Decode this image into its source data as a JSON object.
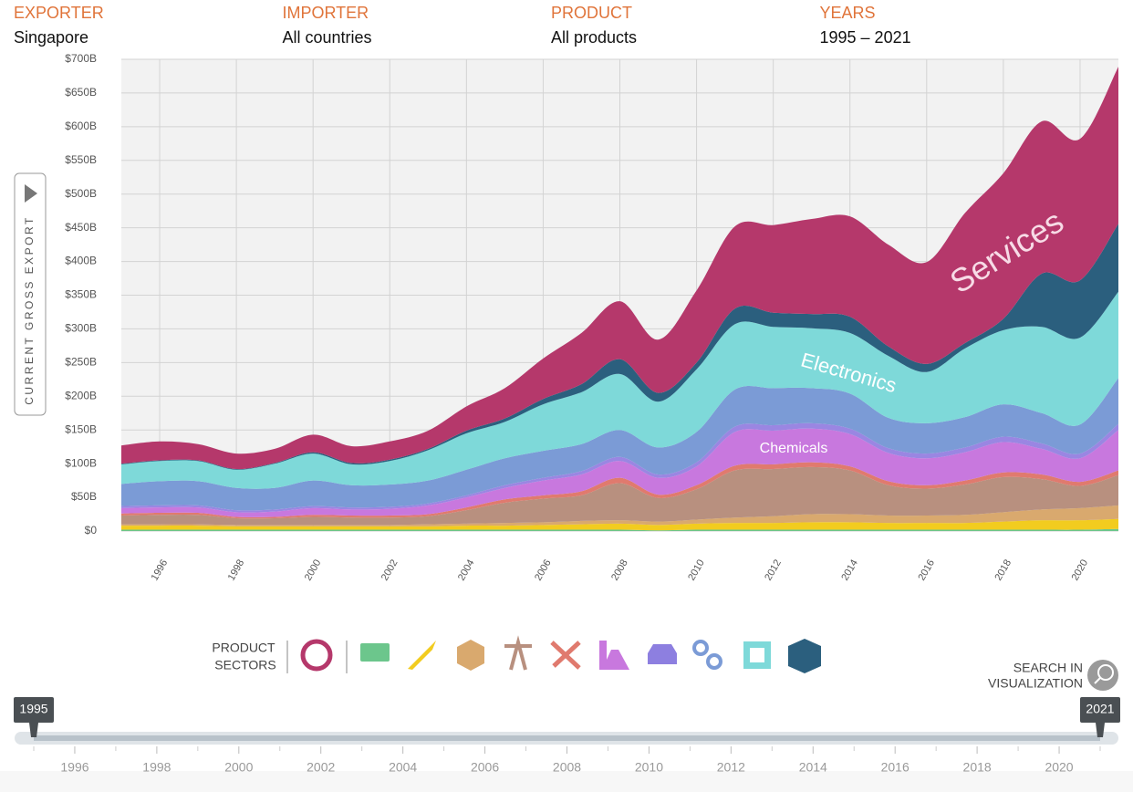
{
  "header": {
    "filters": [
      {
        "label": "EXPORTER",
        "value": "Singapore"
      },
      {
        "label": "IMPORTER",
        "value": "All countries"
      },
      {
        "label": "PRODUCT",
        "value": "All products"
      },
      {
        "label": "YEARS",
        "value": "1995 – 2021"
      }
    ]
  },
  "chart_data": {
    "type": "stacked-area",
    "y_label": "CURRENT GROSS EXPORT",
    "x": [
      1995,
      1996,
      1997,
      1998,
      1999,
      2000,
      2001,
      2002,
      2003,
      2004,
      2005,
      2006,
      2007,
      2008,
      2009,
      2010,
      2011,
      2012,
      2013,
      2014,
      2015,
      2016,
      2017,
      2018,
      2019,
      2020,
      2021
    ],
    "xlim": [
      1995,
      2021
    ],
    "xticks": [
      1996,
      1998,
      2000,
      2002,
      2004,
      2006,
      2008,
      2010,
      2012,
      2014,
      2016,
      2018,
      2020
    ],
    "ylim": [
      0,
      700
    ],
    "yticks": [
      {
        "value": 0,
        "label": "$0"
      },
      {
        "value": 50,
        "label": "$50B"
      },
      {
        "value": 100,
        "label": "$100B"
      },
      {
        "value": 150,
        "label": "$150B"
      },
      {
        "value": 200,
        "label": "$200B"
      },
      {
        "value": 250,
        "label": "$250B"
      },
      {
        "value": 300,
        "label": "$300B"
      },
      {
        "value": 350,
        "label": "$350B"
      },
      {
        "value": 400,
        "label": "$400B"
      },
      {
        "value": 450,
        "label": "$450B"
      },
      {
        "value": 500,
        "label": "$500B"
      },
      {
        "value": 550,
        "label": "$550B"
      },
      {
        "value": 600,
        "label": "$600B"
      },
      {
        "value": 650,
        "label": "$650B"
      },
      {
        "value": 700,
        "label": "$700B"
      }
    ],
    "grid": true,
    "series": [
      {
        "color": "#6cc68c",
        "values": [
          2,
          2,
          2,
          2,
          2,
          2,
          2,
          2,
          2,
          2,
          2,
          2,
          2,
          2,
          1,
          2,
          2,
          2,
          2,
          2,
          2,
          2,
          2,
          2,
          2,
          2,
          3
        ]
      },
      {
        "color": "#f2cc1f",
        "values": [
          6,
          6,
          6,
          5,
          5,
          5,
          5,
          5,
          5,
          6,
          6,
          7,
          8,
          9,
          8,
          9,
          10,
          10,
          11,
          11,
          10,
          10,
          10,
          12,
          14,
          14,
          15
        ]
      },
      {
        "color": "#d9a96e",
        "values": [
          2,
          2,
          2,
          2,
          2,
          2,
          2,
          2,
          3,
          3,
          4,
          4,
          5,
          5,
          5,
          6,
          8,
          10,
          12,
          12,
          11,
          11,
          12,
          14,
          16,
          18,
          20
        ]
      },
      {
        "color": "#b8907f",
        "values": [
          13,
          14,
          14,
          10,
          10,
          12,
          11,
          11,
          12,
          20,
          30,
          35,
          38,
          55,
          35,
          45,
          70,
          70,
          70,
          65,
          45,
          40,
          45,
          52,
          45,
          33,
          45
        ]
      },
      {
        "color": "#e07a6e",
        "values": [
          3,
          3,
          3,
          2,
          2,
          3,
          3,
          3,
          3,
          4,
          5,
          5,
          6,
          8,
          5,
          6,
          7,
          7,
          7,
          6,
          6,
          5,
          6,
          7,
          7,
          6,
          7
        ]
      },
      {
        "name": "Chemicals",
        "color": "#c878de",
        "values": [
          8,
          8,
          8,
          7,
          8,
          10,
          9,
          10,
          13,
          15,
          17,
          22,
          25,
          25,
          25,
          28,
          50,
          50,
          50,
          48,
          42,
          40,
          42,
          45,
          38,
          35,
          60
        ]
      },
      {
        "color": "#9a86e2",
        "values": [
          3,
          3,
          3,
          3,
          3,
          3,
          3,
          3,
          3,
          3,
          4,
          4,
          5,
          6,
          5,
          6,
          8,
          8,
          8,
          8,
          7,
          7,
          7,
          8,
          8,
          7,
          9
        ]
      },
      {
        "color": "#7b9bd6",
        "values": [
          33,
          36,
          36,
          33,
          32,
          38,
          33,
          33,
          34,
          38,
          40,
          40,
          40,
          40,
          40,
          45,
          55,
          55,
          52,
          52,
          45,
          45,
          45,
          48,
          45,
          43,
          68
        ]
      },
      {
        "name": "Electronics",
        "color": "#7ed9d9",
        "values": [
          29,
          30,
          30,
          27,
          36,
          40,
          31,
          35,
          45,
          54,
          54,
          69,
          77,
          83,
          68,
          93,
          97,
          91,
          89,
          90,
          92,
          76,
          102,
          110,
          128,
          129,
          128
        ]
      },
      {
        "color": "#2b5f7e",
        "values": [
          1,
          1,
          1,
          1,
          1,
          2,
          2,
          2,
          2,
          4,
          5,
          8,
          12,
          22,
          13,
          10,
          23,
          21,
          21,
          24,
          14,
          12,
          8,
          17,
          79,
          85,
          101
        ]
      },
      {
        "name": "Services",
        "color": "#b5386b",
        "values": [
          27,
          28,
          24,
          23,
          21,
          26,
          25,
          27,
          27,
          36,
          45,
          60,
          76,
          86,
          79,
          107,
          122,
          130,
          141,
          149,
          151,
          151,
          193,
          216,
          226,
          210,
          233
        ]
      }
    ]
  },
  "sectors": {
    "label": [
      "PRODUCT",
      "SECTORS"
    ]
  },
  "search": {
    "label": [
      "SEARCH IN",
      "VISUALIZATION"
    ]
  },
  "timeline": {
    "range": [
      1995,
      2021
    ],
    "start": 1995,
    "end": 2021,
    "ticks": [
      1996,
      1998,
      2000,
      2002,
      2004,
      2006,
      2008,
      2010,
      2012,
      2014,
      2016,
      2018,
      2020
    ]
  }
}
